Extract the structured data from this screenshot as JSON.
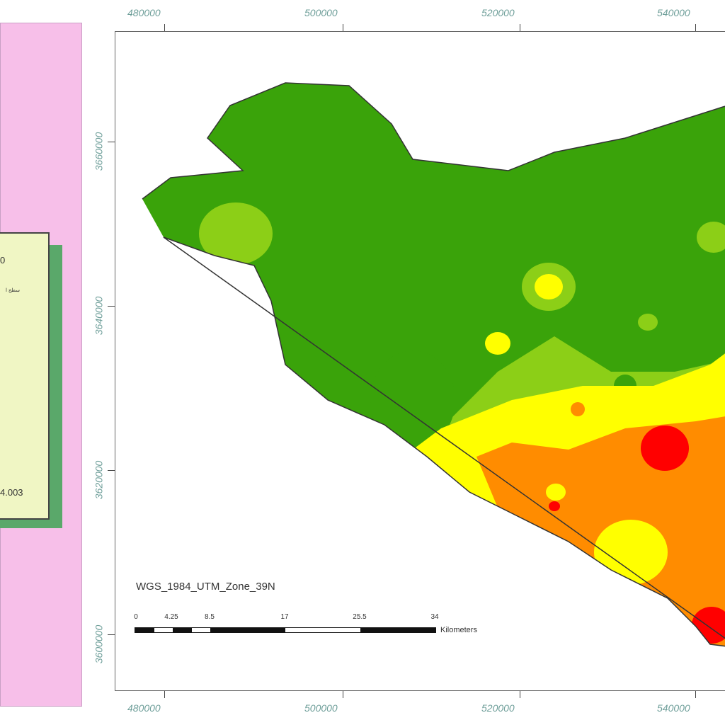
{
  "legend": {
    "top_value": "0",
    "arabic_label": "سطح ا",
    "bottom_value": "4.003"
  },
  "map": {
    "projection": "WGS_1984_UTM_Zone_39N",
    "x_ticks": [
      "480000",
      "500000",
      "520000",
      "540000"
    ],
    "y_ticks": [
      "3660000",
      "3640000",
      "3620000",
      "3600000"
    ],
    "scale_labels": [
      "0",
      "4.25",
      "8.5",
      "17",
      "25.5",
      "34"
    ],
    "scale_units": "Kilometers",
    "classes": [
      {
        "name": "class-1",
        "color": "#3aa30a"
      },
      {
        "name": "class-2",
        "color": "#8ccf17"
      },
      {
        "name": "class-3",
        "color": "#ffff00"
      },
      {
        "name": "class-4",
        "color": "#ff8c00"
      },
      {
        "name": "class-5",
        "color": "#ff0000"
      }
    ]
  },
  "colors": {
    "sidebar_bg": "#f7bfe9",
    "legend_bg": "#f0f6c4",
    "legend_shadow": "#5aa86a",
    "coord_label": "#6f9f9a"
  }
}
